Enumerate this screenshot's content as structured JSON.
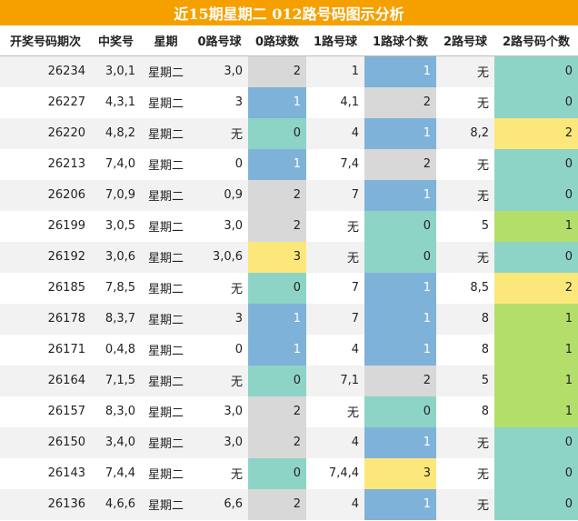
{
  "title": "近15期星期二 012路号码图示分析",
  "headers": [
    "开奖号码期次",
    "中奖号",
    "星期",
    "0路号球",
    "0路球数",
    "1路号球",
    "1路球个数",
    "2路号球",
    "2路号码个数"
  ],
  "colors": {
    "title_bg": "#f6a000",
    "c_blue": "#7fb2d9",
    "c_gray": "#d8d8d8",
    "c_teal": "#8dd4c6",
    "c_yellow": "#fce87a",
    "c_green": "#b4de6a"
  },
  "rows": [
    {
      "period": "26234",
      "nums": "3,0,1",
      "week": "星期二",
      "r0": "3,0",
      "c0": "2",
      "r1": "1",
      "c1": "1",
      "r2": "无",
      "c2": "0"
    },
    {
      "period": "26227",
      "nums": "4,3,1",
      "week": "星期二",
      "r0": "3",
      "c0": "1",
      "r1": "4,1",
      "c1": "2",
      "r2": "无",
      "c2": "0"
    },
    {
      "period": "26220",
      "nums": "4,8,2",
      "week": "星期二",
      "r0": "无",
      "c0": "0",
      "r1": "4",
      "c1": "1",
      "r2": "8,2",
      "c2": "2"
    },
    {
      "period": "26213",
      "nums": "7,4,0",
      "week": "星期二",
      "r0": "0",
      "c0": "1",
      "r1": "7,4",
      "c1": "2",
      "r2": "无",
      "c2": "0"
    },
    {
      "period": "26206",
      "nums": "7,0,9",
      "week": "星期二",
      "r0": "0,9",
      "c0": "2",
      "r1": "7",
      "c1": "1",
      "r2": "无",
      "c2": "0"
    },
    {
      "period": "26199",
      "nums": "3,0,5",
      "week": "星期二",
      "r0": "3,0",
      "c0": "2",
      "r1": "无",
      "c1": "0",
      "r2": "5",
      "c2": "1"
    },
    {
      "period": "26192",
      "nums": "3,0,6",
      "week": "星期二",
      "r0": "3,0,6",
      "c0": "3",
      "r1": "无",
      "c1": "0",
      "r2": "无",
      "c2": "0"
    },
    {
      "period": "26185",
      "nums": "7,8,5",
      "week": "星期二",
      "r0": "无",
      "c0": "0",
      "r1": "7",
      "c1": "1",
      "r2": "8,5",
      "c2": "2"
    },
    {
      "period": "26178",
      "nums": "8,3,7",
      "week": "星期二",
      "r0": "3",
      "c0": "1",
      "r1": "7",
      "c1": "1",
      "r2": "8",
      "c2": "1"
    },
    {
      "period": "26171",
      "nums": "0,4,8",
      "week": "星期二",
      "r0": "0",
      "c0": "1",
      "r1": "4",
      "c1": "1",
      "r2": "8",
      "c2": "1"
    },
    {
      "period": "26164",
      "nums": "7,1,5",
      "week": "星期二",
      "r0": "无",
      "c0": "0",
      "r1": "7,1",
      "c1": "2",
      "r2": "5",
      "c2": "1"
    },
    {
      "period": "26157",
      "nums": "8,3,0",
      "week": "星期二",
      "r0": "3,0",
      "c0": "2",
      "r1": "无",
      "c1": "0",
      "r2": "8",
      "c2": "1"
    },
    {
      "period": "26150",
      "nums": "3,4,0",
      "week": "星期二",
      "r0": "3,0",
      "c0": "2",
      "r1": "4",
      "c1": "1",
      "r2": "无",
      "c2": "0"
    },
    {
      "period": "26143",
      "nums": "7,4,4",
      "week": "星期二",
      "r0": "无",
      "c0": "0",
      "r1": "7,4,4",
      "c1": "3",
      "r2": "无",
      "c2": "0"
    },
    {
      "period": "26136",
      "nums": "4,6,6",
      "week": "星期二",
      "r0": "6,6",
      "c0": "2",
      "r1": "4",
      "c1": "1",
      "r2": "无",
      "c2": "0"
    }
  ]
}
